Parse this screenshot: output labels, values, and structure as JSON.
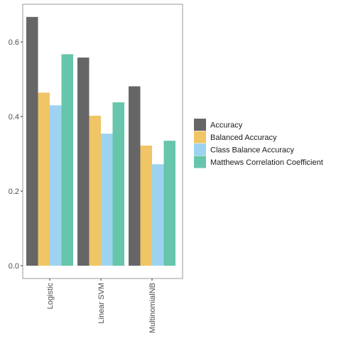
{
  "chart_data": {
    "type": "bar",
    "title": "",
    "xlabel": "",
    "ylabel": "",
    "ylim": [
      0,
      0.7
    ],
    "yticks": [
      0.0,
      0.2,
      0.4,
      0.6
    ],
    "ytick_labels": [
      "0.0",
      "0.2",
      "0.4",
      "0.6"
    ],
    "categories": [
      "Logistic",
      "Linear SVM",
      "MultinomialNB"
    ],
    "grid": false,
    "legend_position": "right",
    "series": [
      {
        "name": "Accuracy",
        "color": "#666666",
        "values": [
          0.667,
          0.558,
          0.481
        ]
      },
      {
        "name": "Balanced Accuracy",
        "color": "#F0C566",
        "values": [
          0.464,
          0.402,
          0.322
        ]
      },
      {
        "name": "Class Balance Accuracy",
        "color": "#9DD3F0",
        "values": [
          0.43,
          0.354,
          0.272
        ]
      },
      {
        "name": "Matthews Correlation Coefficient",
        "color": "#66C5AA",
        "values": [
          0.567,
          0.438,
          0.335
        ]
      }
    ]
  }
}
